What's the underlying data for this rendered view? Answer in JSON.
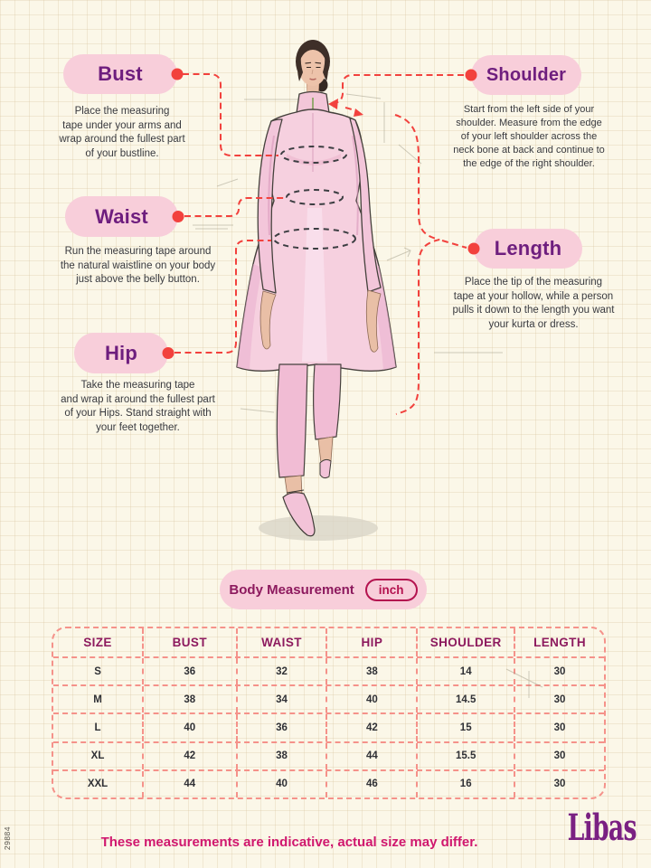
{
  "annotations": {
    "bust": {
      "label": "Bust",
      "description": "Place the measuring\ntape under your arms and\nwrap around the fullest part\nof your bustline."
    },
    "waist": {
      "label": "Waist",
      "description": "Run the measuring tape around\nthe natural waistline on your body\njust above the belly button."
    },
    "hip": {
      "label": "Hip",
      "description": "Take the measuring tape\nand wrap it around the fullest part\nof your Hips. Stand straight with\nyour feet together."
    },
    "shoulder": {
      "label": "Shoulder",
      "description": "Start from the left side of your\nshoulder. Measure from the edge\nof your left shoulder across the\nneck bone at back and continue to\nthe edge of the right shoulder."
    },
    "length": {
      "label": "Length",
      "description": "Place the tip of the measuring\ntape at your hollow, while a person\npulls it down to the length you want\nyour kurta or dress."
    }
  },
  "measurement_header": {
    "title": "Body Measurement",
    "unit": "inch"
  },
  "size_table": {
    "headers": [
      "SIZE",
      "BUST",
      "WAIST",
      "HIP",
      "SHOULDER",
      "LENGTH"
    ],
    "rows": [
      [
        "S",
        "36",
        "32",
        "38",
        "14",
        "30"
      ],
      [
        "M",
        "38",
        "34",
        "40",
        "14.5",
        "30"
      ],
      [
        "L",
        "40",
        "36",
        "42",
        "15",
        "30"
      ],
      [
        "XL",
        "42",
        "38",
        "44",
        "15.5",
        "30"
      ],
      [
        "XXL",
        "44",
        "40",
        "46",
        "16",
        "30"
      ]
    ]
  },
  "footer": {
    "note": "These measurements are indicative, actual size may differ.",
    "brand": "Libas"
  },
  "side_code": "29884",
  "colors": {
    "background": "#FBF7E8",
    "pill_pink": "#F8CEDA",
    "label_purple": "#6E1E7E",
    "accent_red": "#F2413D",
    "table_border": "#F5928A",
    "header_magenta": "#8D1A5E",
    "note_magenta": "#D0176E",
    "brand_purple": "#7A2082",
    "kurta_pink": "#F6D0DF"
  }
}
